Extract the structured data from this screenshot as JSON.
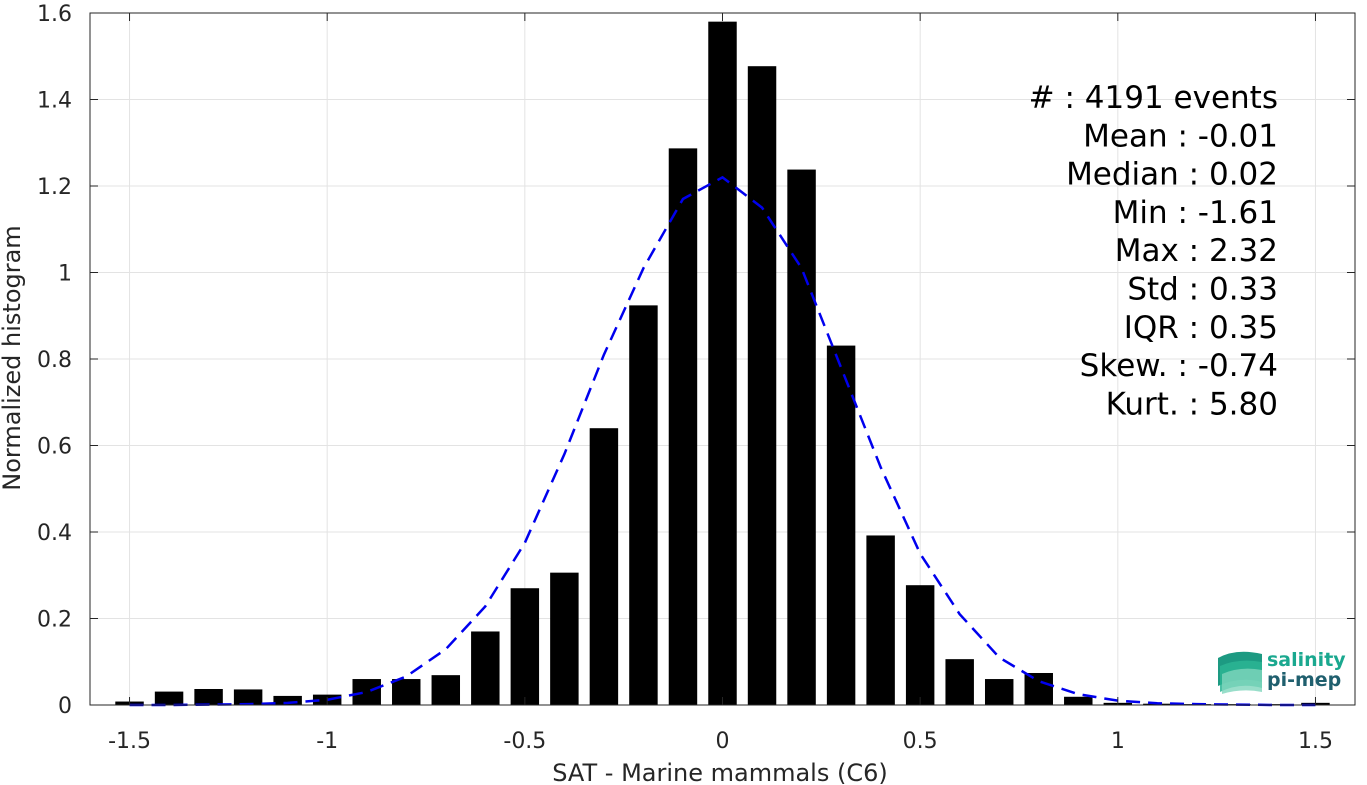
{
  "chart_data": {
    "type": "bar",
    "xlabel": "SAT - Marine mammals (C6)",
    "ylabel": "Normalized histogram",
    "xlim": [
      -1.6,
      1.6
    ],
    "ylim": [
      0,
      1.6
    ],
    "xticks": [
      -1.5,
      -1,
      -0.5,
      0,
      0.5,
      1,
      1.5
    ],
    "xtick_labels": [
      "-1.5",
      "-1",
      "-0.5",
      "0",
      "0.5",
      "1",
      "1.5"
    ],
    "yticks": [
      0,
      0.2,
      0.4,
      0.6,
      0.8,
      1,
      1.2,
      1.4,
      1.6
    ],
    "ytick_labels": [
      "0",
      "0.2",
      "0.4",
      "0.6",
      "0.8",
      "1",
      "1.2",
      "1.4",
      "1.6"
    ],
    "grid": true,
    "bar_color": "#000000",
    "bars": {
      "x": [
        -1.5,
        -1.4,
        -1.3,
        -1.2,
        -1.1,
        -1.0,
        -0.9,
        -0.8,
        -0.7,
        -0.6,
        -0.5,
        -0.4,
        -0.3,
        -0.2,
        -0.1,
        0.0,
        0.1,
        0.2,
        0.3,
        0.4,
        0.5,
        0.6,
        0.7,
        0.8,
        0.9,
        1.0,
        1.1,
        1.2,
        1.3,
        1.4,
        1.5
      ],
      "values": [
        0.008,
        0.031,
        0.037,
        0.036,
        0.021,
        0.024,
        0.06,
        0.06,
        0.069,
        0.17,
        0.27,
        0.306,
        0.64,
        0.924,
        1.287,
        1.58,
        1.477,
        1.238,
        0.831,
        0.392,
        0.277,
        0.106,
        0.06,
        0.074,
        0.019,
        0.005,
        0.003,
        0.002,
        0.002,
        0.002,
        0.005
      ],
      "width": 0.072
    },
    "fit_curve": {
      "style": "dashed",
      "color": "#0000ee",
      "x": [
        -1.5,
        -1.4,
        -1.3,
        -1.2,
        -1.1,
        -1.0,
        -0.9,
        -0.8,
        -0.7,
        -0.6,
        -0.5,
        -0.4,
        -0.3,
        -0.2,
        -0.1,
        0.0,
        0.1,
        0.2,
        0.3,
        0.4,
        0.5,
        0.6,
        0.7,
        0.8,
        0.9,
        1.0,
        1.1,
        1.2,
        1.3,
        1.4,
        1.5
      ],
      "values": [
        0.0,
        0.0,
        0.001,
        0.002,
        0.005,
        0.012,
        0.03,
        0.066,
        0.129,
        0.228,
        0.375,
        0.58,
        0.81,
        1.01,
        1.17,
        1.22,
        1.15,
        1.01,
        0.78,
        0.55,
        0.35,
        0.21,
        0.11,
        0.055,
        0.025,
        0.01,
        0.004,
        0.002,
        0.001,
        0.0,
        0.0
      ]
    },
    "annotations": [
      "#  : 4191 events",
      "Mean : -0.01",
      "Median : 0.02",
      "Min : -1.61",
      "Max : 2.32",
      "Std : 0.33",
      "IQR : 0.35",
      "Skew. : -0.74",
      "Kurt. : 5.80"
    ]
  },
  "logo": {
    "line1": "salinity",
    "line2": "pi-mep",
    "color": "#1aa88f"
  }
}
